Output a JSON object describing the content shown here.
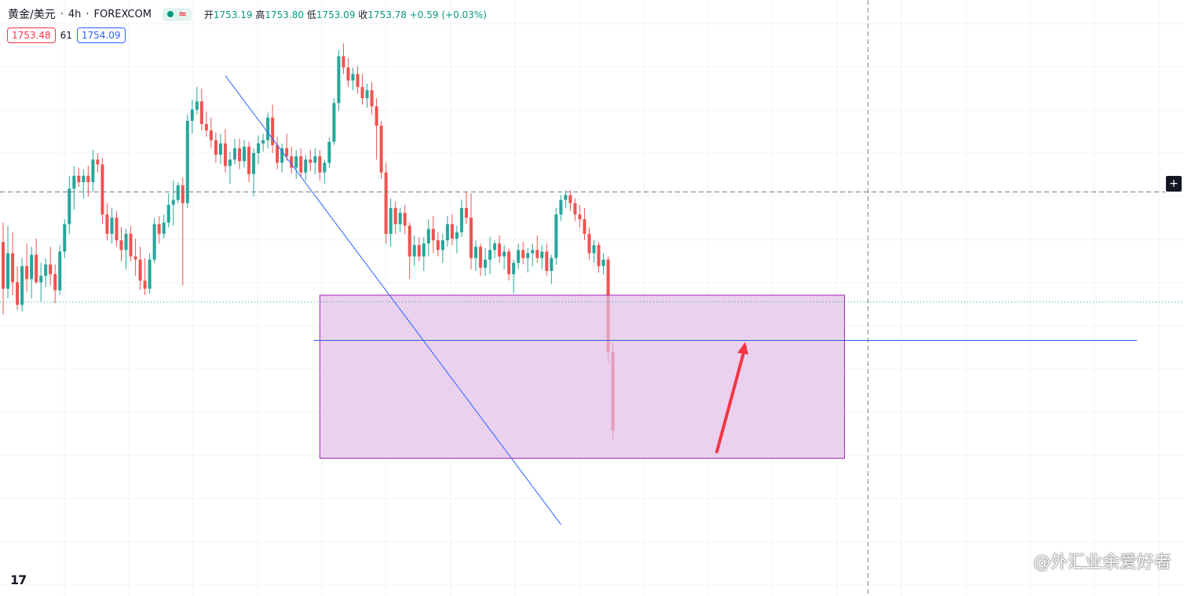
{
  "legend": {
    "symbol": "黄金/美元",
    "interval": "4h",
    "exchange": "FOREXCOM",
    "status_icon": "market-open-dot",
    "approx_icon": "≈",
    "open_label": "开",
    "open_value": "1753.19",
    "high_label": "高",
    "high_value": "1753.80",
    "low_label": "低",
    "low_value": "1753.09",
    "close_label": "收",
    "close_value": "1753.78",
    "change": "+0.59 (+0.03%)"
  },
  "prices": {
    "sell": "1753.48",
    "spread": "61",
    "buy": "1754.09"
  },
  "logo": "17",
  "watermark": "@外汇业余爱好者",
  "plus_icon": "crosshair-plus-icon",
  "colors": {
    "up": "#26a69a",
    "down": "#ef5350",
    "grid": "#f0f3fa",
    "trendline": "#2962ff",
    "box_fill": "#e1bee7",
    "box_border": "#9c27b0",
    "arrow": "#f23645",
    "price_line": "#26a69a"
  },
  "chart_data": {
    "type": "candlestick",
    "symbol": "XAU/USD",
    "interval": "4h",
    "ylim": [
      1736,
      1772
    ],
    "current_price": 1753.78,
    "crosshair_price": 1760.6,
    "crosshair_index": 183,
    "candles": [
      [
        1757.5,
        1758.7,
        1753.0,
        1754.6
      ],
      [
        1754.6,
        1758.5,
        1754.0,
        1756.8
      ],
      [
        1756.8,
        1758.1,
        1754.2,
        1755.0
      ],
      [
        1755.0,
        1756.0,
        1753.3,
        1753.6
      ],
      [
        1753.6,
        1756.5,
        1753.2,
        1756.0
      ],
      [
        1756.0,
        1757.4,
        1754.4,
        1755.2
      ],
      [
        1755.2,
        1757.2,
        1754.0,
        1756.7
      ],
      [
        1756.7,
        1757.7,
        1754.9,
        1755.0
      ],
      [
        1755.0,
        1756.2,
        1753.8,
        1755.4
      ],
      [
        1755.4,
        1756.5,
        1754.7,
        1756.1
      ],
      [
        1756.1,
        1757.2,
        1754.8,
        1755.5
      ],
      [
        1755.5,
        1756.1,
        1753.7,
        1754.5
      ],
      [
        1754.5,
        1757.3,
        1754.2,
        1756.9
      ],
      [
        1756.9,
        1758.9,
        1756.5,
        1758.6
      ],
      [
        1758.6,
        1761.6,
        1758.0,
        1760.8
      ],
      [
        1760.8,
        1762.2,
        1759.5,
        1761.6
      ],
      [
        1761.6,
        1762.1,
        1760.9,
        1761.2
      ],
      [
        1761.2,
        1762.0,
        1760.2,
        1761.6
      ],
      [
        1761.6,
        1762.2,
        1760.3,
        1761.2
      ],
      [
        1761.2,
        1763.2,
        1760.6,
        1762.6
      ],
      [
        1762.6,
        1763.0,
        1761.8,
        1762.3
      ],
      [
        1762.3,
        1762.7,
        1758.6,
        1759.2
      ],
      [
        1759.2,
        1759.9,
        1757.6,
        1758.0
      ],
      [
        1758.0,
        1759.6,
        1757.4,
        1759.0
      ],
      [
        1759.0,
        1759.4,
        1757.2,
        1757.6
      ],
      [
        1757.6,
        1758.4,
        1756.3,
        1757.0
      ],
      [
        1757.0,
        1758.3,
        1755.8,
        1758.0
      ],
      [
        1758.0,
        1758.5,
        1756.3,
        1756.6
      ],
      [
        1756.6,
        1757.7,
        1755.4,
        1756.4
      ],
      [
        1756.4,
        1757.2,
        1754.5,
        1755.1
      ],
      [
        1755.1,
        1756.5,
        1754.2,
        1754.6
      ],
      [
        1754.6,
        1756.8,
        1754.3,
        1756.4
      ],
      [
        1756.4,
        1759.0,
        1756.2,
        1758.6
      ],
      [
        1758.6,
        1759.1,
        1757.4,
        1758.0
      ],
      [
        1758.0,
        1759.2,
        1757.7,
        1758.7
      ],
      [
        1758.7,
        1760.5,
        1758.4,
        1759.8
      ],
      [
        1759.8,
        1761.3,
        1758.5,
        1760.1
      ],
      [
        1760.1,
        1761.2,
        1759.9,
        1761.0
      ],
      [
        1761.0,
        1761.5,
        1754.8,
        1759.9
      ],
      [
        1759.9,
        1765.4,
        1759.6,
        1765.0
      ],
      [
        1765.0,
        1766.3,
        1764.2,
        1765.7
      ],
      [
        1765.7,
        1767.1,
        1765.4,
        1766.2
      ],
      [
        1766.2,
        1767.0,
        1764.4,
        1764.8
      ],
      [
        1764.8,
        1765.6,
        1764.0,
        1764.4
      ],
      [
        1764.4,
        1765.2,
        1763.3,
        1763.8
      ],
      [
        1763.8,
        1764.3,
        1762.4,
        1762.9
      ],
      [
        1762.9,
        1764.2,
        1762.3,
        1763.6
      ],
      [
        1763.6,
        1764.5,
        1761.8,
        1762.2
      ],
      [
        1762.2,
        1763.1,
        1761.1,
        1762.6
      ],
      [
        1762.6,
        1763.9,
        1762.3,
        1763.3
      ],
      [
        1763.3,
        1763.9,
        1762.0,
        1762.5
      ],
      [
        1762.5,
        1763.8,
        1762.1,
        1763.4
      ],
      [
        1763.4,
        1763.7,
        1761.2,
        1761.7
      ],
      [
        1761.7,
        1763.3,
        1760.3,
        1763.0
      ],
      [
        1763.0,
        1764.1,
        1762.3,
        1763.6
      ],
      [
        1763.6,
        1764.2,
        1763.1,
        1763.8
      ],
      [
        1763.8,
        1765.5,
        1763.3,
        1765.2
      ],
      [
        1765.2,
        1766.0,
        1763.0,
        1763.5
      ],
      [
        1763.5,
        1764.0,
        1762.0,
        1762.4
      ],
      [
        1762.4,
        1763.6,
        1761.8,
        1763.3
      ],
      [
        1763.3,
        1764.2,
        1762.5,
        1762.8
      ],
      [
        1762.8,
        1763.4,
        1761.7,
        1762.1
      ],
      [
        1762.1,
        1763.2,
        1761.4,
        1762.8
      ],
      [
        1762.8,
        1763.3,
        1761.5,
        1761.8
      ],
      [
        1761.8,
        1762.9,
        1761.3,
        1762.6
      ],
      [
        1762.6,
        1763.2,
        1761.9,
        1762.4
      ],
      [
        1762.4,
        1763.3,
        1761.7,
        1762.8
      ],
      [
        1762.8,
        1763.2,
        1761.3,
        1761.8
      ],
      [
        1761.8,
        1762.6,
        1761.1,
        1762.4
      ],
      [
        1762.4,
        1764.0,
        1762.1,
        1763.7
      ],
      [
        1763.7,
        1766.4,
        1763.5,
        1766.1
      ],
      [
        1766.1,
        1769.4,
        1765.6,
        1769.0
      ],
      [
        1769.0,
        1769.8,
        1767.9,
        1768.3
      ],
      [
        1768.3,
        1768.9,
        1767.1,
        1767.5
      ],
      [
        1767.5,
        1768.3,
        1766.9,
        1767.9
      ],
      [
        1767.9,
        1768.4,
        1766.7,
        1767.1
      ],
      [
        1767.1,
        1767.9,
        1766.0,
        1766.4
      ],
      [
        1766.4,
        1767.3,
        1765.8,
        1766.9
      ],
      [
        1766.9,
        1767.4,
        1765.4,
        1765.9
      ],
      [
        1765.9,
        1766.4,
        1762.6,
        1764.7
      ],
      [
        1764.7,
        1765.0,
        1761.4,
        1761.8
      ],
      [
        1761.8,
        1762.4,
        1757.4,
        1758.0
      ],
      [
        1758.0,
        1760.2,
        1757.2,
        1759.6
      ],
      [
        1759.6,
        1760.0,
        1758.0,
        1758.6
      ],
      [
        1758.6,
        1759.6,
        1758.1,
        1759.3
      ],
      [
        1759.3,
        1759.8,
        1758.0,
        1758.5
      ],
      [
        1758.5,
        1758.7,
        1755.2,
        1756.6
      ],
      [
        1756.6,
        1757.9,
        1756.0,
        1757.3
      ],
      [
        1757.3,
        1757.8,
        1756.3,
        1756.6
      ],
      [
        1756.6,
        1757.8,
        1755.7,
        1757.4
      ],
      [
        1757.4,
        1758.9,
        1756.6,
        1758.3
      ],
      [
        1758.3,
        1759.1,
        1756.8,
        1757.6
      ],
      [
        1757.6,
        1758.1,
        1756.6,
        1757.0
      ],
      [
        1757.0,
        1758.0,
        1756.2,
        1757.6
      ],
      [
        1757.6,
        1759.1,
        1757.2,
        1758.6
      ],
      [
        1758.6,
        1759.2,
        1757.3,
        1757.7
      ],
      [
        1757.7,
        1758.5,
        1756.8,
        1758.1
      ],
      [
        1758.1,
        1760.1,
        1757.8,
        1759.6
      ],
      [
        1759.6,
        1760.6,
        1758.6,
        1759.0
      ],
      [
        1759.0,
        1760.5,
        1755.8,
        1756.5
      ],
      [
        1756.5,
        1757.6,
        1755.7,
        1757.2
      ],
      [
        1757.2,
        1757.4,
        1755.4,
        1755.9
      ],
      [
        1755.9,
        1757.1,
        1755.4,
        1756.4
      ],
      [
        1756.4,
        1757.8,
        1755.5,
        1757.0
      ],
      [
        1757.0,
        1757.6,
        1756.5,
        1757.4
      ],
      [
        1757.4,
        1757.9,
        1756.2,
        1756.6
      ],
      [
        1756.6,
        1757.3,
        1755.8,
        1756.9
      ],
      [
        1756.9,
        1757.1,
        1755.1,
        1755.5
      ],
      [
        1755.5,
        1756.4,
        1754.3,
        1756.2
      ],
      [
        1756.2,
        1757.4,
        1755.8,
        1757.0
      ],
      [
        1757.0,
        1757.5,
        1756.1,
        1756.5
      ],
      [
        1756.5,
        1757.1,
        1755.6,
        1756.8
      ],
      [
        1756.8,
        1757.4,
        1756.0,
        1757.0
      ],
      [
        1757.0,
        1757.9,
        1756.2,
        1756.5
      ],
      [
        1756.5,
        1757.3,
        1755.8,
        1756.9
      ],
      [
        1756.9,
        1757.4,
        1755.4,
        1755.7
      ],
      [
        1755.7,
        1756.7,
        1754.9,
        1756.5
      ],
      [
        1756.5,
        1759.6,
        1756.1,
        1759.2
      ],
      [
        1759.2,
        1760.4,
        1758.8,
        1760.1
      ],
      [
        1760.1,
        1760.7,
        1759.6,
        1760.4
      ],
      [
        1760.4,
        1760.7,
        1759.4,
        1759.9
      ],
      [
        1759.9,
        1760.2,
        1758.8,
        1759.2
      ],
      [
        1759.2,
        1759.8,
        1758.4,
        1758.9
      ],
      [
        1758.9,
        1759.6,
        1757.6,
        1758.0
      ],
      [
        1758.0,
        1758.4,
        1756.4,
        1756.8
      ],
      [
        1756.8,
        1757.6,
        1756.2,
        1757.3
      ],
      [
        1757.3,
        1757.5,
        1755.6,
        1756.0
      ],
      [
        1756.0,
        1756.8,
        1755.5,
        1756.4
      ],
      [
        1756.4,
        1756.6,
        1750.0,
        1750.7
      ],
      [
        1750.7,
        1751.3,
        1745.2,
        1745.8
      ]
    ],
    "trendline": [
      [
        1767.8,
        47
      ],
      [
        1740.0,
        118
      ]
    ],
    "range_box": {
      "top": 1754.2,
      "bottom": 1744.1,
      "start": 67,
      "end": 178
    },
    "horizontal_line": 1751.4
  }
}
